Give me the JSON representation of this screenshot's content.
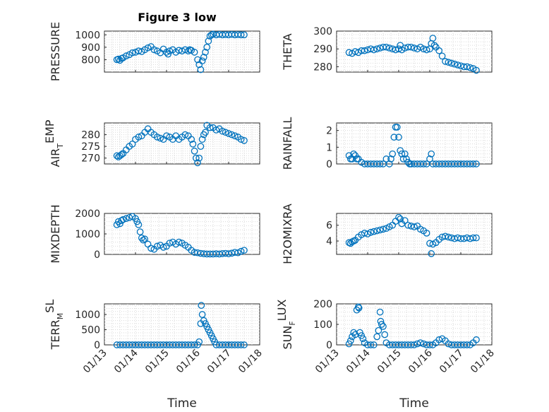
{
  "figure": {
    "title": "Figure 3 low"
  },
  "chart_data": [
    {
      "type": "scatter",
      "ylabel": "PRESSURE",
      "ylim": [
        700,
        1030
      ],
      "yticks": [
        800,
        900,
        1000
      ],
      "xlim": [
        13,
        18
      ],
      "xticks": [],
      "x": [
        13.4,
        13.45,
        13.5,
        13.55,
        13.6,
        13.7,
        13.8,
        13.9,
        14.0,
        14.1,
        14.2,
        14.3,
        14.4,
        14.5,
        14.6,
        14.7,
        14.8,
        14.9,
        15.0,
        15.05,
        15.1,
        15.2,
        15.3,
        15.4,
        15.5,
        15.6,
        15.7,
        15.75,
        15.8,
        15.9,
        16.0,
        16.05,
        16.1,
        16.15,
        16.2,
        16.25,
        16.3,
        16.35,
        16.4,
        16.45,
        16.5,
        16.6,
        16.7,
        16.8,
        16.9,
        17.0,
        17.1,
        17.2,
        17.3,
        17.4,
        17.5
      ],
      "values": [
        800,
        805,
        795,
        810,
        815,
        830,
        840,
        855,
        860,
        870,
        865,
        880,
        895,
        905,
        880,
        870,
        855,
        885,
        860,
        845,
        870,
        880,
        860,
        875,
        870,
        880,
        870,
        880,
        875,
        860,
        800,
        760,
        720,
        790,
        820,
        860,
        900,
        950,
        990,
        1000,
        1005,
        1000,
        1003,
        1000,
        1002,
        1000,
        1003,
        1000,
        1002,
        1000,
        1000
      ]
    },
    {
      "type": "scatter",
      "ylabel": "THETA",
      "ylim": [
        277,
        300
      ],
      "yticks": [
        280,
        290,
        300
      ],
      "xlim": [
        13,
        18
      ],
      "xticks": [],
      "x": [
        13.4,
        13.5,
        13.6,
        13.7,
        13.8,
        13.9,
        14.0,
        14.1,
        14.2,
        14.3,
        14.4,
        14.5,
        14.6,
        14.7,
        14.8,
        14.9,
        15.0,
        15.05,
        15.1,
        15.2,
        15.3,
        15.4,
        15.5,
        15.6,
        15.7,
        15.8,
        15.9,
        16.0,
        16.05,
        16.1,
        16.15,
        16.2,
        16.3,
        16.4,
        16.5,
        16.6,
        16.7,
        16.8,
        16.9,
        17.0,
        17.1,
        17.2,
        17.3,
        17.4,
        17.5
      ],
      "values": [
        288,
        287.5,
        288.5,
        288,
        289,
        289,
        289.5,
        290,
        289.5,
        290,
        290.5,
        291,
        291,
        290.5,
        290,
        289.5,
        290,
        292,
        289.5,
        290.5,
        291,
        291,
        290.5,
        290,
        291,
        290,
        289.5,
        290,
        293,
        296,
        292,
        291,
        289,
        286,
        283,
        282.5,
        282,
        281.5,
        281,
        280.5,
        280,
        280,
        279.5,
        279,
        278
      ]
    },
    {
      "type": "scatter",
      "ylabel": "AIR_TEMP",
      "ylim": [
        267.5,
        285
      ],
      "yticks": [
        270,
        275,
        280
      ],
      "xlim": [
        13,
        18
      ],
      "xticks": [],
      "x": [
        13.4,
        13.45,
        13.5,
        13.55,
        13.6,
        13.7,
        13.8,
        13.9,
        14.0,
        14.1,
        14.2,
        14.3,
        14.4,
        14.5,
        14.6,
        14.7,
        14.8,
        14.9,
        15.0,
        15.1,
        15.2,
        15.3,
        15.4,
        15.5,
        15.6,
        15.7,
        15.8,
        15.85,
        15.9,
        15.95,
        16.0,
        16.05,
        16.1,
        16.15,
        16.2,
        16.25,
        16.3,
        16.4,
        16.5,
        16.6,
        16.7,
        16.8,
        16.9,
        17.0,
        17.1,
        17.2,
        17.3,
        17.4,
        17.5
      ],
      "values": [
        271,
        270.5,
        271,
        271.5,
        272,
        273.5,
        275,
        276,
        278,
        279,
        279.5,
        281,
        282.5,
        281,
        280,
        279,
        278.5,
        278,
        279.5,
        279,
        278,
        279.5,
        278,
        279,
        280,
        279.5,
        278,
        276,
        273,
        270,
        268,
        270,
        275,
        278,
        280,
        281,
        284,
        283,
        283,
        282,
        282.5,
        281.5,
        281,
        280.5,
        280,
        279.5,
        279,
        278,
        277.5
      ]
    },
    {
      "type": "scatter",
      "ylabel": "RAINFALL",
      "ylim": [
        0,
        2.45
      ],
      "yticks": [
        0,
        1,
        2
      ],
      "xlim": [
        13,
        18
      ],
      "xticks": [],
      "x": [
        13.4,
        13.45,
        13.5,
        13.55,
        13.6,
        13.65,
        13.7,
        13.8,
        13.9,
        14.0,
        14.1,
        14.2,
        14.3,
        14.4,
        14.5,
        14.6,
        14.7,
        14.75,
        14.8,
        14.85,
        14.9,
        14.95,
        15.0,
        15.05,
        15.1,
        15.15,
        15.2,
        15.25,
        15.3,
        15.35,
        15.4,
        15.5,
        15.6,
        15.7,
        15.8,
        15.9,
        16.0,
        16.05,
        16.1,
        16.2,
        16.3,
        16.4,
        16.5,
        16.6,
        16.7,
        16.8,
        16.9,
        17.0,
        17.1,
        17.2,
        17.3,
        17.4,
        17.5
      ],
      "values": [
        0.5,
        0.3,
        0.3,
        0.6,
        0.5,
        0.3,
        0.3,
        0.1,
        0,
        0,
        0,
        0,
        0,
        0,
        0,
        0.3,
        0,
        0.3,
        0.6,
        1.6,
        2.2,
        2.2,
        1.6,
        0.8,
        0.6,
        0.3,
        0.6,
        0.3,
        0.1,
        0,
        0,
        0,
        0,
        0,
        0,
        0,
        0.3,
        0.6,
        0,
        0,
        0,
        0,
        0,
        0,
        0,
        0,
        0,
        0,
        0,
        0,
        0,
        0,
        0
      ]
    },
    {
      "type": "scatter",
      "ylabel": "MIXDEPTH",
      "ylim": [
        0,
        2000
      ],
      "yticks": [
        0,
        1000,
        2000
      ],
      "xlim": [
        13,
        18
      ],
      "xticks": [],
      "x": [
        13.4,
        13.45,
        13.5,
        13.55,
        13.6,
        13.7,
        13.8,
        13.9,
        14.0,
        14.05,
        14.1,
        14.15,
        14.2,
        14.25,
        14.3,
        14.4,
        14.5,
        14.6,
        14.7,
        14.8,
        14.9,
        15.0,
        15.1,
        15.2,
        15.3,
        15.4,
        15.5,
        15.6,
        15.7,
        15.8,
        15.9,
        16.0,
        16.1,
        16.2,
        16.3,
        16.4,
        16.5,
        16.6,
        16.7,
        16.8,
        16.9,
        17.0,
        17.1,
        17.2,
        17.3,
        17.4,
        17.5
      ],
      "values": [
        1450,
        1600,
        1500,
        1650,
        1700,
        1750,
        1800,
        1850,
        1750,
        1600,
        1450,
        1100,
        800,
        700,
        750,
        500,
        300,
        250,
        400,
        450,
        350,
        400,
        550,
        600,
        500,
        600,
        550,
        450,
        350,
        200,
        100,
        80,
        50,
        30,
        20,
        20,
        20,
        30,
        20,
        40,
        50,
        30,
        60,
        100,
        80,
        150,
        200
      ]
    },
    {
      "type": "scatter",
      "ylabel": "H2OMIXRA",
      "ylim": [
        2.3,
        7.5
      ],
      "yticks": [
        4,
        6
      ],
      "xlim": [
        13,
        18
      ],
      "xticks": [],
      "x": [
        13.4,
        13.45,
        13.5,
        13.55,
        13.6,
        13.7,
        13.8,
        13.9,
        14.0,
        14.1,
        14.2,
        14.3,
        14.4,
        14.5,
        14.6,
        14.7,
        14.8,
        14.9,
        15.0,
        15.05,
        15.1,
        15.2,
        15.3,
        15.4,
        15.5,
        15.6,
        15.7,
        15.8,
        15.9,
        16.0,
        16.05,
        16.1,
        16.2,
        16.3,
        16.4,
        16.5,
        16.6,
        16.7,
        16.8,
        16.9,
        17.0,
        17.1,
        17.2,
        17.3,
        17.4,
        17.5
      ],
      "values": [
        3.8,
        3.7,
        3.9,
        4.0,
        4.1,
        4.5,
        4.8,
        5.0,
        4.9,
        5.1,
        5.2,
        5.3,
        5.4,
        5.5,
        5.6,
        5.8,
        6.0,
        6.5,
        7.0,
        6.8,
        6.2,
        6.6,
        6.0,
        5.9,
        5.8,
        5.9,
        5.5,
        5.3,
        5.0,
        3.7,
        2.4,
        3.6,
        3.8,
        4.2,
        4.5,
        4.6,
        4.5,
        4.4,
        4.3,
        4.4,
        4.3,
        4.3,
        4.4,
        4.3,
        4.4,
        4.4
      ]
    },
    {
      "type": "scatter",
      "ylabel": "TERR_MSL",
      "ylim": [
        0,
        1350
      ],
      "yticks": [
        0,
        500,
        1000
      ],
      "xlim": [
        13,
        18
      ],
      "xticks": [
        "01/13",
        "01/14",
        "01/15",
        "01/16",
        "01/17",
        "01/18"
      ],
      "xlabel": "Time",
      "x": [
        13.4,
        13.5,
        13.6,
        13.7,
        13.8,
        13.9,
        14.0,
        14.1,
        14.2,
        14.3,
        14.4,
        14.5,
        14.6,
        14.7,
        14.8,
        14.9,
        15.0,
        15.1,
        15.2,
        15.3,
        15.4,
        15.5,
        15.6,
        15.7,
        15.8,
        15.9,
        16.0,
        16.05,
        16.1,
        16.12,
        16.15,
        16.2,
        16.25,
        16.3,
        16.35,
        16.4,
        16.45,
        16.5,
        16.55,
        16.6,
        16.7,
        16.8,
        16.9,
        17.0,
        17.1,
        17.2,
        17.3,
        17.4,
        17.5
      ],
      "values": [
        0,
        0,
        0,
        0,
        0,
        0,
        0,
        0,
        0,
        0,
        0,
        0,
        0,
        0,
        0,
        0,
        0,
        0,
        0,
        0,
        0,
        0,
        0,
        0,
        0,
        0,
        0,
        100,
        700,
        1300,
        1000,
        800,
        700,
        600,
        500,
        400,
        300,
        200,
        100,
        0,
        0,
        0,
        0,
        0,
        0,
        0,
        0,
        0,
        0
      ]
    },
    {
      "type": "scatter",
      "ylabel": "SUN_FLUX",
      "ylim": [
        0,
        200
      ],
      "yticks": [
        0,
        100,
        200
      ],
      "xlim": [
        13,
        18
      ],
      "xticks": [
        "01/13",
        "01/14",
        "01/15",
        "01/16",
        "01/17",
        "01/18"
      ],
      "xlabel": "Time",
      "x": [
        13.4,
        13.45,
        13.5,
        13.55,
        13.6,
        13.65,
        13.7,
        13.72,
        13.75,
        13.8,
        13.85,
        13.9,
        14.0,
        14.1,
        14.2,
        14.3,
        14.35,
        14.4,
        14.42,
        14.45,
        14.5,
        14.55,
        14.6,
        14.7,
        14.8,
        14.9,
        15.0,
        15.1,
        15.2,
        15.3,
        15.4,
        15.5,
        15.6,
        15.7,
        15.8,
        15.9,
        16.0,
        16.1,
        16.2,
        16.3,
        16.4,
        16.5,
        16.6,
        16.7,
        16.8,
        16.9,
        17.0,
        17.1,
        17.2,
        17.3,
        17.4,
        17.5
      ],
      "values": [
        5,
        20,
        40,
        60,
        50,
        170,
        185,
        180,
        60,
        45,
        30,
        10,
        0,
        0,
        0,
        40,
        70,
        160,
        115,
        100,
        90,
        50,
        10,
        0,
        0,
        0,
        0,
        0,
        0,
        0,
        0,
        0,
        5,
        10,
        5,
        0,
        0,
        0,
        10,
        25,
        30,
        20,
        5,
        0,
        0,
        0,
        0,
        0,
        0,
        0,
        10,
        25
      ]
    }
  ]
}
